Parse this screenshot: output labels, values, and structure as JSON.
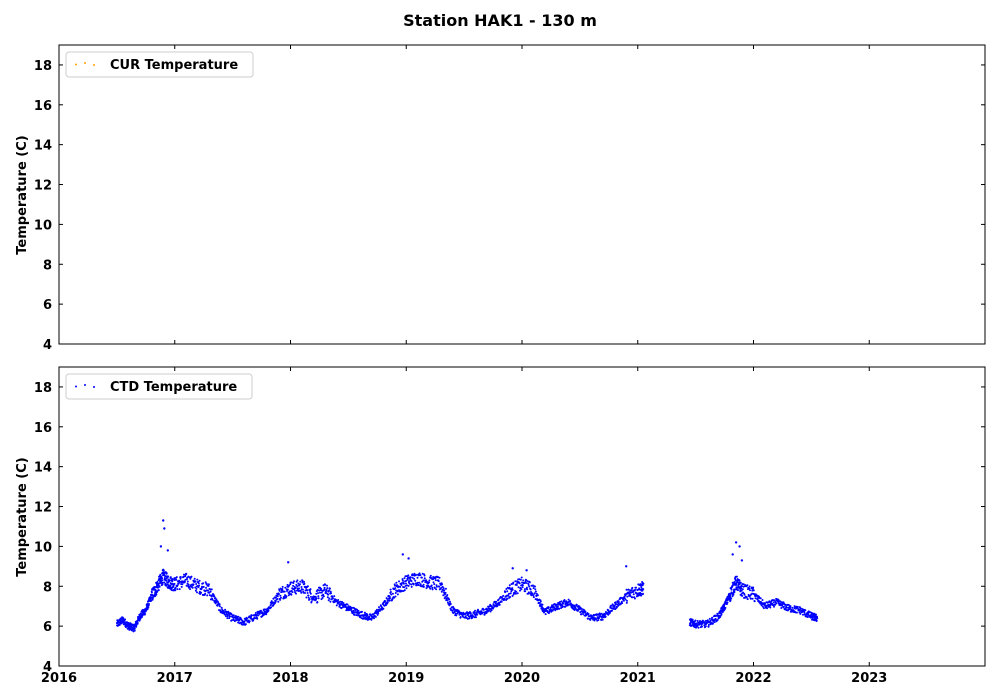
{
  "figure": {
    "title": "Station HAK1 - 130 m"
  },
  "chart_data": [
    {
      "type": "scatter",
      "title": "",
      "xlabel": "",
      "ylabel": "Temperature (C)",
      "xlim": [
        2016,
        2024
      ],
      "ylim": [
        4,
        19
      ],
      "xticks": [
        2016,
        2017,
        2018,
        2019,
        2020,
        2021,
        2022,
        2023
      ],
      "xtick_labels_visible": false,
      "yticks": [
        4,
        6,
        8,
        10,
        12,
        14,
        16,
        18
      ],
      "legend_position": "upper-left",
      "series": [
        {
          "name": "CUR Temperature",
          "color": "#ffa500",
          "points": []
        }
      ]
    },
    {
      "type": "scatter",
      "title": "",
      "xlabel": "",
      "ylabel": "Temperature (C)",
      "xlim": [
        2016,
        2024
      ],
      "ylim": [
        4,
        19
      ],
      "xticks": [
        2016,
        2017,
        2018,
        2019,
        2020,
        2021,
        2022,
        2023
      ],
      "xtick_labels_visible": true,
      "yticks": [
        4,
        6,
        8,
        10,
        12,
        14,
        16,
        18
      ],
      "legend_position": "upper-left",
      "series": [
        {
          "name": "CTD Temperature",
          "color": "#0000ff",
          "points": [
            [
              2016.5,
              6.1
            ],
            [
              2016.55,
              6.3
            ],
            [
              2016.6,
              6.0
            ],
            [
              2016.65,
              5.9
            ],
            [
              2016.7,
              6.5
            ],
            [
              2016.75,
              6.8
            ],
            [
              2016.8,
              7.5
            ],
            [
              2016.85,
              8.0
            ],
            [
              2016.9,
              8.5
            ],
            [
              2016.95,
              8.2
            ],
            [
              2017.0,
              8.1
            ],
            [
              2017.1,
              8.3
            ],
            [
              2017.2,
              8.0
            ],
            [
              2017.3,
              7.8
            ],
            [
              2017.4,
              6.8
            ],
            [
              2017.5,
              6.4
            ],
            [
              2017.6,
              6.2
            ],
            [
              2017.7,
              6.5
            ],
            [
              2017.8,
              6.8
            ],
            [
              2017.9,
              7.6
            ],
            [
              2018.0,
              7.9
            ],
            [
              2018.1,
              8.0
            ],
            [
              2018.2,
              7.4
            ],
            [
              2018.3,
              7.8
            ],
            [
              2018.4,
              7.2
            ],
            [
              2018.5,
              6.9
            ],
            [
              2018.6,
              6.6
            ],
            [
              2018.7,
              6.4
            ],
            [
              2018.8,
              7.0
            ],
            [
              2018.9,
              7.8
            ],
            [
              2019.0,
              8.2
            ],
            [
              2019.1,
              8.4
            ],
            [
              2019.2,
              8.2
            ],
            [
              2019.3,
              8.1
            ],
            [
              2019.4,
              6.8
            ],
            [
              2019.5,
              6.5
            ],
            [
              2019.6,
              6.6
            ],
            [
              2019.7,
              6.8
            ],
            [
              2019.8,
              7.2
            ],
            [
              2019.9,
              7.8
            ],
            [
              2020.0,
              8.1
            ],
            [
              2020.1,
              7.8
            ],
            [
              2020.2,
              6.7
            ],
            [
              2020.3,
              7.0
            ],
            [
              2020.4,
              7.2
            ],
            [
              2020.5,
              6.8
            ],
            [
              2020.6,
              6.4
            ],
            [
              2020.7,
              6.5
            ],
            [
              2020.8,
              7.0
            ],
            [
              2020.9,
              7.5
            ],
            [
              2021.0,
              7.8
            ],
            [
              2021.05,
              7.9
            ],
            [
              2021.45,
              6.2
            ],
            [
              2021.5,
              6.1
            ],
            [
              2021.6,
              6.1
            ],
            [
              2021.7,
              6.5
            ],
            [
              2021.75,
              7.0
            ],
            [
              2021.8,
              7.6
            ],
            [
              2021.85,
              8.2
            ],
            [
              2021.9,
              7.8
            ],
            [
              2022.0,
              7.6
            ],
            [
              2022.1,
              7.0
            ],
            [
              2022.2,
              7.2
            ],
            [
              2022.3,
              6.9
            ],
            [
              2022.4,
              6.8
            ],
            [
              2022.5,
              6.5
            ],
            [
              2022.55,
              6.4
            ]
          ],
          "spikes": [
            [
              2016.9,
              11.3
            ],
            [
              2016.91,
              10.9
            ],
            [
              2016.88,
              10.0
            ],
            [
              2016.94,
              9.8
            ],
            [
              2017.98,
              9.2
            ],
            [
              2018.97,
              9.6
            ],
            [
              2019.02,
              9.4
            ],
            [
              2019.92,
              8.9
            ],
            [
              2020.04,
              8.8
            ],
            [
              2020.9,
              9.0
            ],
            [
              2021.85,
              10.2
            ],
            [
              2021.88,
              10.0
            ],
            [
              2021.82,
              9.6
            ],
            [
              2021.9,
              9.3
            ]
          ]
        }
      ]
    }
  ]
}
